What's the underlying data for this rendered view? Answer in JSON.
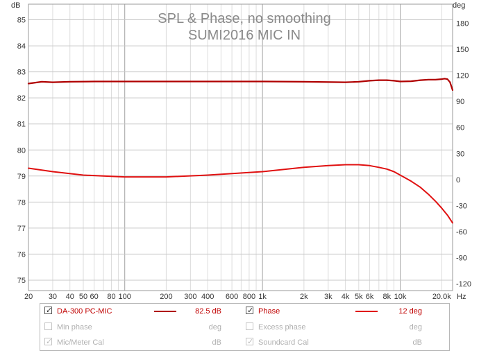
{
  "chart_data": {
    "type": "line",
    "title": "SPL & Phase, no smoothing",
    "subtitle": "SUMI2016 MIC IN",
    "x_unit": "Hz",
    "y_left_unit": "dB",
    "y_right_unit": "deg",
    "xscale": "log",
    "xlim": [
      20,
      24000
    ],
    "ylim_left": [
      74.6,
      85.6
    ],
    "ylim_right": [
      -128,
      202
    ],
    "x_ticks": [
      {
        "v": 20,
        "t": "20"
      },
      {
        "v": 30,
        "t": "30"
      },
      {
        "v": 40,
        "t": "40"
      },
      {
        "v": 50,
        "t": "50"
      },
      {
        "v": 60,
        "t": "60"
      },
      {
        "v": 80,
        "t": "80"
      },
      {
        "v": 100,
        "t": "100"
      },
      {
        "v": 200,
        "t": "200"
      },
      {
        "v": 300,
        "t": "300"
      },
      {
        "v": 400,
        "t": "400"
      },
      {
        "v": 600,
        "t": "600"
      },
      {
        "v": 800,
        "t": "800"
      },
      {
        "v": 1000,
        "t": "1k"
      },
      {
        "v": 2000,
        "t": "2k"
      },
      {
        "v": 3000,
        "t": "3k"
      },
      {
        "v": 4000,
        "t": "4k"
      },
      {
        "v": 5000,
        "t": "5k"
      },
      {
        "v": 6000,
        "t": "6k"
      },
      {
        "v": 8000,
        "t": "8k"
      },
      {
        "v": 10000,
        "t": "10k"
      },
      {
        "v": 20000,
        "t": "20.0k"
      }
    ],
    "y_left_ticks": [
      75,
      76,
      77,
      78,
      79,
      80,
      81,
      82,
      83,
      84,
      85
    ],
    "y_right_ticks": [
      -120,
      -90,
      -60,
      -30,
      0,
      30,
      60,
      90,
      120,
      150,
      180
    ],
    "grid": true,
    "legend_position": "bottom",
    "series": [
      {
        "name": "DA-300 PC-MIC",
        "axis": "left",
        "color": "#b00000",
        "x": [
          20,
          22,
          25,
          30,
          40,
          60,
          100,
          200,
          400,
          1000,
          2000,
          4000,
          5000,
          6000,
          7000,
          8000,
          9000,
          10000,
          12000,
          14000,
          16000,
          18000,
          20000,
          21000,
          22000,
          23000,
          24000
        ],
        "y": [
          82.55,
          82.58,
          82.62,
          82.6,
          82.62,
          82.63,
          82.63,
          82.63,
          82.63,
          82.63,
          82.62,
          82.6,
          82.62,
          82.66,
          82.68,
          82.68,
          82.66,
          82.63,
          82.64,
          82.68,
          82.7,
          82.7,
          82.72,
          82.74,
          82.72,
          82.6,
          82.3
        ]
      },
      {
        "name": "Phase",
        "axis": "right",
        "color": "#e01010",
        "x": [
          20,
          30,
          50,
          100,
          200,
          400,
          1000,
          2000,
          3000,
          4000,
          5000,
          6000,
          7000,
          8000,
          9000,
          10000,
          12000,
          14000,
          16000,
          18000,
          20000,
          22000,
          24000
        ],
        "y": [
          13,
          9,
          5,
          3,
          3,
          5,
          9,
          14,
          16,
          17,
          17,
          16,
          14,
          12,
          9,
          5,
          -2,
          -9,
          -17,
          -25,
          -33,
          -41,
          -50
        ]
      }
    ]
  },
  "legend": {
    "rows": [
      [
        {
          "checked": true,
          "enabled": true,
          "name": "DA-300 PC-MIC",
          "swatch": "#b00000",
          "value": "82.5 dB"
        },
        {
          "checked": true,
          "enabled": true,
          "name": "Phase",
          "swatch": "#e01010",
          "value": "12 deg"
        }
      ],
      [
        {
          "checked": false,
          "enabled": false,
          "name": "Min phase",
          "swatch": "",
          "value": "deg"
        },
        {
          "checked": false,
          "enabled": false,
          "name": "Excess phase",
          "swatch": "",
          "value": "deg"
        }
      ],
      [
        {
          "checked": true,
          "enabled": false,
          "name": "Mic/Meter Cal",
          "swatch": "",
          "value": "dB"
        },
        {
          "checked": true,
          "enabled": false,
          "name": "Soundcard Cal",
          "swatch": "",
          "value": "dB"
        }
      ]
    ]
  }
}
